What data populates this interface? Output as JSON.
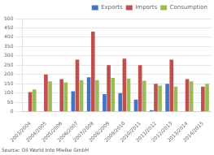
{
  "chart_data": {
    "type": "bar",
    "categories": [
      "2003/2004",
      "2004/2005",
      "2005/2006",
      "2006/2007",
      "2007/2008",
      "2008/2009",
      "2009/2010",
      "2010/2011",
      "2011/2012",
      "2012/2013",
      "2013/2014",
      "2014/2015"
    ],
    "series": [
      {
        "name": "Exports",
        "color": "#4472c4",
        "values": [
          0,
          0,
          0,
          110,
          185,
          95,
          100,
          65,
          8,
          150,
          2,
          2
        ]
      },
      {
        "name": "Imports",
        "color": "#c0504d",
        "values": [
          105,
          200,
          175,
          280,
          430,
          250,
          285,
          250,
          150,
          280,
          175,
          135
        ]
      },
      {
        "name": "Consumption",
        "color": "#9bbb59",
        "values": [
          120,
          163,
          158,
          170,
          170,
          182,
          178,
          167,
          140,
          135,
          163,
          150
        ]
      }
    ],
    "ylim": [
      0,
      500
    ],
    "yticks": [
      0,
      50,
      100,
      150,
      200,
      250,
      300,
      350,
      400,
      450,
      500
    ],
    "grid": "y",
    "legend": "upper right",
    "annotations": [
      "Source: Oil World Into Mielke GmbH"
    ]
  }
}
